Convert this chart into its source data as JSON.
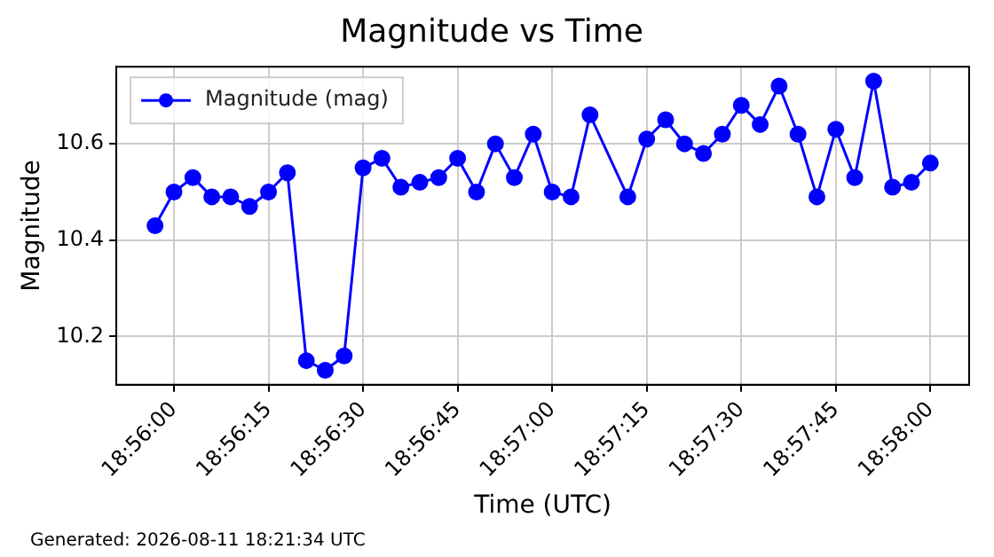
{
  "chart_data": {
    "type": "line",
    "title": "Magnitude vs Time",
    "xlabel": "Time (UTC)",
    "ylabel": "Magnitude",
    "annotations": [
      "Generated: 2026-08-11 18:21:34 UTC"
    ],
    "x": [
      18.9325,
      18.933333,
      18.934167,
      18.935,
      18.935833,
      18.936667,
      18.9375,
      18.938333,
      18.939167,
      18.94,
      18.940833,
      18.941667,
      18.9425,
      18.943333,
      18.944167,
      18.945,
      18.945833,
      18.946667,
      18.9475,
      18.948333,
      18.949167,
      18.95,
      18.950833,
      18.951667,
      18.953333,
      18.954167,
      18.955,
      18.955833,
      18.956667,
      18.9575,
      18.958333,
      18.959167,
      18.96,
      18.960833,
      18.961667,
      18.9625,
      18.963333,
      18.964167,
      18.965,
      18.965833,
      18.966667
    ],
    "series": [
      {
        "name": "Magnitude (mag)",
        "color": "#0000ff",
        "values": [
          10.43,
          10.5,
          10.53,
          10.49,
          10.49,
          10.47,
          10.5,
          10.54,
          10.15,
          10.13,
          10.16,
          10.55,
          10.57,
          10.51,
          10.52,
          10.53,
          10.57,
          10.5,
          10.6,
          10.53,
          10.62,
          10.5,
          10.49,
          10.66,
          10.49,
          10.61,
          10.65,
          10.6,
          10.58,
          10.62,
          10.68,
          10.64,
          10.72,
          10.62,
          10.49,
          10.63,
          10.53,
          10.73,
          10.51,
          10.52,
          10.56
        ]
      }
    ],
    "xlim": [
      18.930792,
      18.968375
    ],
    "xticks": [
      {
        "value": 18.933333,
        "label": "18:56:00"
      },
      {
        "value": 18.9375,
        "label": "18:56:15"
      },
      {
        "value": 18.941667,
        "label": "18:56:30"
      },
      {
        "value": 18.945833,
        "label": "18:56:45"
      },
      {
        "value": 18.95,
        "label": "18:57:00"
      },
      {
        "value": 18.954167,
        "label": "18:57:15"
      },
      {
        "value": 18.958333,
        "label": "18:57:30"
      },
      {
        "value": 18.9625,
        "label": "18:57:45"
      },
      {
        "value": 18.966667,
        "label": "18:58:00"
      }
    ],
    "ylim": [
      10.1,
      10.76
    ],
    "yticks": [
      {
        "value": 10.2,
        "label": "10.2"
      },
      {
        "value": 10.4,
        "label": "10.4"
      },
      {
        "value": 10.6,
        "label": "10.6"
      }
    ],
    "grid": true,
    "legend": "top left",
    "marker": "circle",
    "line_style": "solid"
  }
}
